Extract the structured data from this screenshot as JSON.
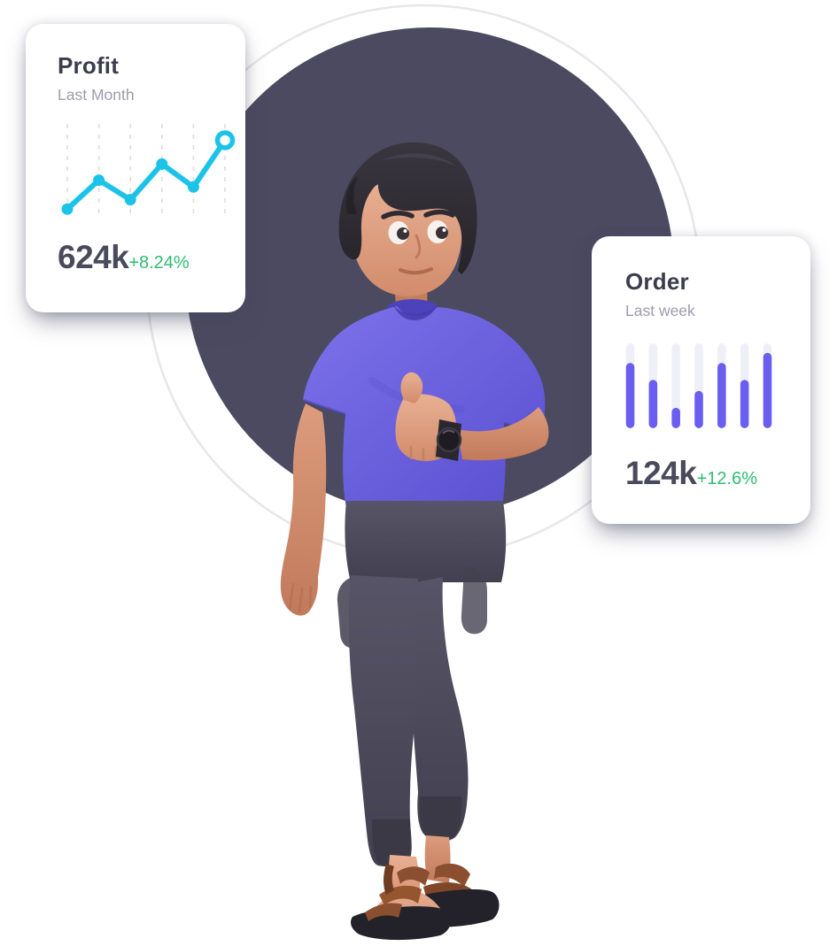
{
  "page": {
    "background_color": "#FFFFFF",
    "backdrop_circle_color": "#4B4A60",
    "ring_color": "#E6E6EC"
  },
  "illustration": {
    "subject": "3d man in purple t-shirt giving thumbs-up, wearing watch, dark jogger pants and brown sandals",
    "colors": {
      "shirt": "#685DDD",
      "shirt_shadow": "#5A4FD0",
      "skin": "#DC9E80",
      "hair": "#2F2C33",
      "pants": "#4E4C5C",
      "sandals": "#8B4F2F",
      "watch": "#26242B"
    }
  },
  "cards": {
    "profit": {
      "title": "Profit",
      "subtitle": "Last Month",
      "value": "624k",
      "change": "+8.24%",
      "accent_color": "#1BC3E8",
      "change_color": "#2EBD70",
      "gridline_color": "#DCDCE4"
    },
    "order": {
      "title": "Order",
      "subtitle": "Last week",
      "value": "124k",
      "change": "+12.6%",
      "accent_color": "#6A5EF0",
      "track_color": "#EFEFF7",
      "change_color": "#2EBD70"
    }
  },
  "chart_data": [
    {
      "type": "line",
      "title": "Profit",
      "period": "Last Month",
      "x": [
        1,
        2,
        3,
        4,
        5,
        6
      ],
      "values": [
        6,
        40,
        17,
        59,
        32,
        87
      ],
      "value_scale": "relative 0-100, no axis labels shown",
      "summary_value": "624k",
      "change": "+8.24%",
      "line_color": "#1BC3E8",
      "marker": "filled dots, ring marker on last point",
      "grid": "6 vertical dashed gridlines",
      "axes_hidden": true
    },
    {
      "type": "bar",
      "title": "Order",
      "period": "Last week",
      "categories": [
        "1",
        "2",
        "3",
        "4",
        "5",
        "6",
        "7"
      ],
      "values": [
        77,
        57,
        24,
        44,
        77,
        57,
        89
      ],
      "value_scale": "percent of full track height, no axis labels shown",
      "summary_value": "124k",
      "change": "+12.6%",
      "bar_color": "#6A5EF0",
      "track_color": "#EFEFF7",
      "bar_style": "rounded vertical pills on light full-height tracks",
      "axes_hidden": true
    }
  ]
}
